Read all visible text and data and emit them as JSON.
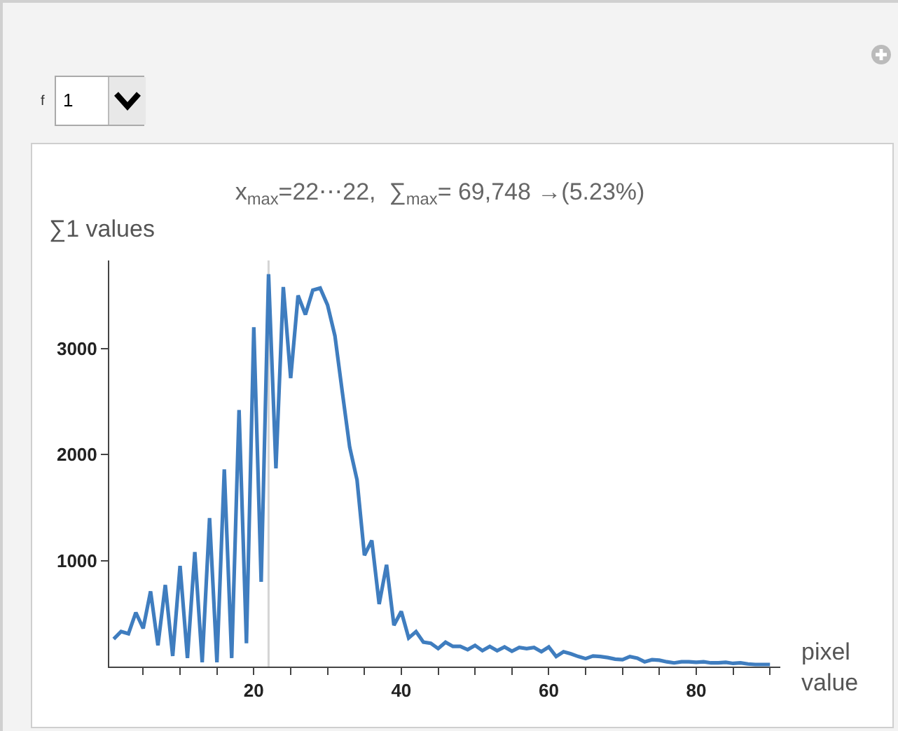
{
  "chart_data": {
    "type": "line",
    "title": "x$_{max}$=22⋯22,  ∑$_{max}$= 69,748 →(5.23%)",
    "ylabel": "∑1 values",
    "xlabel": "pixel value",
    "annotations": [
      "f",
      "1"
    ],
    "x": [
      1,
      2,
      3,
      4,
      5,
      6,
      7,
      8,
      9,
      10,
      11,
      12,
      13,
      14,
      15,
      16,
      17,
      18,
      19,
      20,
      21,
      22,
      23,
      24,
      25,
      26,
      27,
      28,
      29,
      30,
      31,
      32,
      33,
      34,
      35,
      36,
      37,
      38,
      39,
      40,
      41,
      42,
      43,
      44,
      45,
      46,
      47,
      48,
      49,
      50,
      51,
      52,
      53,
      54,
      55,
      56,
      57,
      58,
      59,
      60,
      61,
      62,
      63,
      64,
      65,
      66,
      67,
      68,
      69,
      70,
      71,
      72,
      73,
      74,
      75,
      76,
      77,
      78,
      79,
      80,
      81,
      82,
      83,
      84,
      85,
      86,
      87,
      88,
      89,
      90
    ],
    "series": [
      {
        "color": "#3f7dbf",
        "values": [
          260,
          330,
          310,
          510,
          360,
          710,
          200,
          770,
          100,
          950,
          80,
          1080,
          40,
          1400,
          40,
          1860,
          80,
          2420,
          220,
          3200,
          800,
          3700,
          1870,
          3580,
          2720,
          3500,
          3320,
          3550,
          3570,
          3410,
          3120,
          2590,
          2070,
          1760,
          1050,
          1190,
          590,
          960,
          390,
          520,
          270,
          330,
          230,
          220,
          170,
          230,
          190,
          190,
          160,
          200,
          150,
          190,
          150,
          185,
          145,
          180,
          170,
          180,
          140,
          185,
          95,
          140,
          120,
          95,
          75,
          100,
          95,
          85,
          70,
          65,
          95,
          80,
          45,
          65,
          60,
          45,
          35,
          45,
          45,
          40,
          45,
          35,
          35,
          40,
          30,
          35,
          25,
          20,
          20,
          20
        ]
      }
    ],
    "xlim": [
      0.4,
      91.4
    ],
    "ylim": [
      0,
      3830
    ],
    "xticks": [
      {
        "value": 5,
        "label": null
      },
      {
        "value": 10,
        "label": null
      },
      {
        "value": 15,
        "label": null
      },
      20,
      {
        "value": 25,
        "label": null
      },
      {
        "value": 30,
        "label": null
      },
      {
        "value": 35,
        "label": null
      },
      40,
      {
        "value": 45,
        "label": null
      },
      {
        "value": 50,
        "label": null
      },
      {
        "value": 55,
        "label": null
      },
      60,
      {
        "value": 65,
        "label": null
      },
      {
        "value": 70,
        "label": null
      },
      {
        "value": 75,
        "label": null
      },
      80,
      {
        "value": 85,
        "label": null
      },
      {
        "value": 90,
        "label": null
      }
    ],
    "yticks": [
      1000,
      2000,
      3000
    ],
    "ref_lines": [
      {
        "axis": "x",
        "value": 22,
        "color": "#d4d4d4"
      }
    ],
    "grid": false,
    "marker": "none",
    "line_style": "solid"
  }
}
